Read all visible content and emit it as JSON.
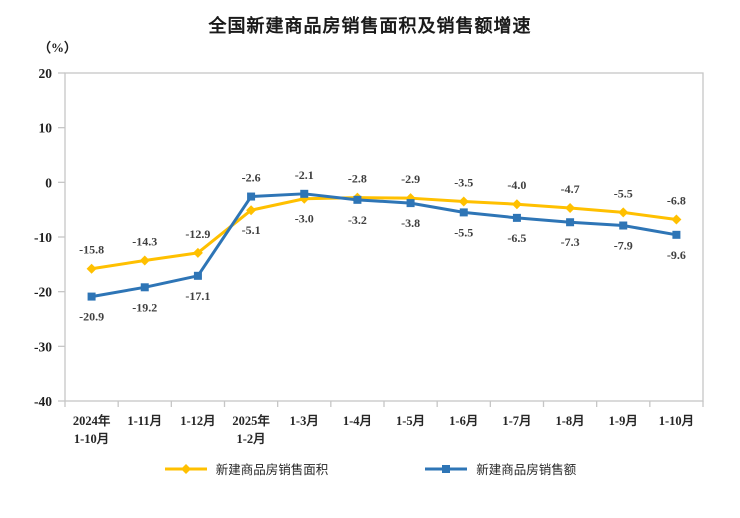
{
  "title": "全国新建商品房销售面积及销售额增速",
  "unit_label": "（%）",
  "chart_data": {
    "type": "line",
    "categories": [
      [
        "2024年",
        "1-10月"
      ],
      [
        "1-11月"
      ],
      [
        "1-12月"
      ],
      [
        "2025年",
        "1-2月"
      ],
      [
        "1-3月"
      ],
      [
        "1-4月"
      ],
      [
        "1-5月"
      ],
      [
        "1-6月"
      ],
      [
        "1-7月"
      ],
      [
        "1-8月"
      ],
      [
        "1-9月"
      ],
      [
        "1-10月"
      ]
    ],
    "series": [
      {
        "id": "sales-area",
        "name": "新建商品房销售面积",
        "color": "#FFC000",
        "marker": "diamond",
        "values": [
          -15.8,
          -14.3,
          -12.9,
          -5.1,
          -3.0,
          -2.8,
          -2.9,
          -3.5,
          -4.0,
          -4.7,
          -5.5,
          -6.8
        ],
        "label_placement": [
          "above",
          "above",
          "above",
          "below",
          "below",
          "above",
          "above",
          "above",
          "above",
          "above",
          "above",
          "above"
        ]
      },
      {
        "id": "sales-amount",
        "name": "新建商品房销售额",
        "color": "#2E75B6",
        "marker": "square",
        "values": [
          -20.9,
          -19.2,
          -17.1,
          -2.6,
          -2.1,
          -3.2,
          -3.8,
          -5.5,
          -6.5,
          -7.3,
          -7.9,
          -9.6
        ],
        "label_placement": [
          "below",
          "below",
          "below",
          "above",
          "above",
          "below",
          "below",
          "below",
          "below",
          "below",
          "below",
          "below"
        ]
      }
    ],
    "ylim": [
      -40,
      20
    ],
    "yticks": [
      20,
      10,
      0,
      -10,
      -20,
      -30,
      -40
    ],
    "grid": false,
    "frame_color": "#C6C6C6",
    "legend_position": "bottom",
    "label_decimals": 1
  }
}
